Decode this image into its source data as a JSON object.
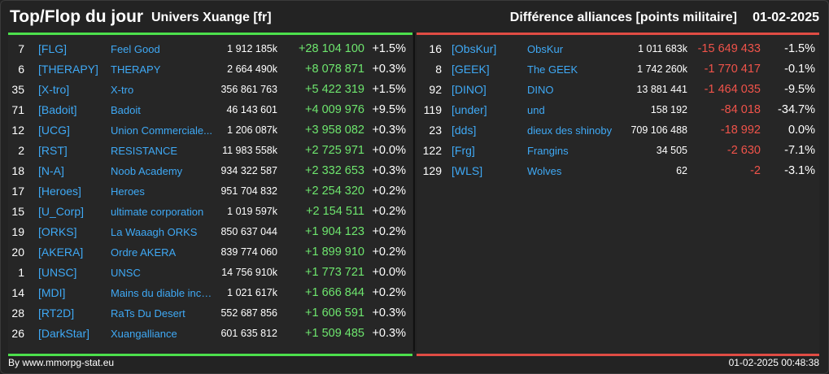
{
  "header": {
    "title": "Top/Flop du jour",
    "universe": "Univers Xuange [fr]",
    "diff_label": "Différence alliances [points militaire]",
    "date": "01-02-2025"
  },
  "top": [
    {
      "rank": "7",
      "tag": "[FLG]",
      "name": "Feel Good",
      "points": "1 912 185k",
      "diff": "+28 104 100",
      "pct": "+1.5%"
    },
    {
      "rank": "6",
      "tag": "[THERAPY]",
      "name": "THERAPY",
      "points": "2 664 490k",
      "diff": "+8 078 871",
      "pct": "+0.3%"
    },
    {
      "rank": "35",
      "tag": "[X-tro]",
      "name": "X-tro",
      "points": "356 861 763",
      "diff": "+5 422 319",
      "pct": "+1.5%"
    },
    {
      "rank": "71",
      "tag": "[Badoit]",
      "name": "Badoit",
      "points": "46 143 601",
      "diff": "+4 009 976",
      "pct": "+9.5%"
    },
    {
      "rank": "12",
      "tag": "[UCG]",
      "name": "Union Commerciale...",
      "points": "1 206 087k",
      "diff": "+3 958 082",
      "pct": "+0.3%"
    },
    {
      "rank": "2",
      "tag": "[RST]",
      "name": "RESISTANCE",
      "points": "11 983 558k",
      "diff": "+2 725 971",
      "pct": "+0.0%"
    },
    {
      "rank": "18",
      "tag": "[N-A]",
      "name": "Noob Academy",
      "points": "934 322 587",
      "diff": "+2 332 653",
      "pct": "+0.3%"
    },
    {
      "rank": "17",
      "tag": "[Heroes]",
      "name": "Heroes",
      "points": "951 704 832",
      "diff": "+2 254 320",
      "pct": "+0.2%"
    },
    {
      "rank": "15",
      "tag": "[U_Corp]",
      "name": "ultimate corporation",
      "points": "1 019 597k",
      "diff": "+2 154 511",
      "pct": "+0.2%"
    },
    {
      "rank": "19",
      "tag": "[ORKS]",
      "name": "La Waaagh ORKS",
      "points": "850 637 044",
      "diff": "+1 904 123",
      "pct": "+0.2%"
    },
    {
      "rank": "20",
      "tag": "[AKERA]",
      "name": "Ordre AKERA",
      "points": "839 774 060",
      "diff": "+1 899 910",
      "pct": "+0.2%"
    },
    {
      "rank": "1",
      "tag": "[UNSC]",
      "name": "UNSC",
      "points": "14 756 910k",
      "diff": "+1 773 721",
      "pct": "+0.0%"
    },
    {
      "rank": "14",
      "tag": "[MDI]",
      "name": "Mains du diable inco...",
      "points": "1 021 617k",
      "diff": "+1 666 844",
      "pct": "+0.2%"
    },
    {
      "rank": "28",
      "tag": "[RT2D]",
      "name": "RaTs Du Desert",
      "points": "552 687 856",
      "diff": "+1 606 591",
      "pct": "+0.3%"
    },
    {
      "rank": "26",
      "tag": "[DarkStar]",
      "name": "Xuangalliance",
      "points": "601 635 812",
      "diff": "+1 509 485",
      "pct": "+0.3%"
    }
  ],
  "flop": [
    {
      "rank": "16",
      "tag": "[ObsKur]",
      "name": "ObsKur",
      "points": "1 011 683k",
      "diff": "-15 649 433",
      "pct": "-1.5%"
    },
    {
      "rank": "8",
      "tag": "[GEEK]",
      "name": "The GEEK",
      "points": "1 742 260k",
      "diff": "-1 770 417",
      "pct": "-0.1%"
    },
    {
      "rank": "92",
      "tag": "[DINO]",
      "name": "DINO",
      "points": "13 881 441",
      "diff": "-1 464 035",
      "pct": "-9.5%"
    },
    {
      "rank": "119",
      "tag": "[under]",
      "name": "und",
      "points": "158 192",
      "diff": "-84 018",
      "pct": "-34.7%"
    },
    {
      "rank": "23",
      "tag": "[dds]",
      "name": "dieux des shinoby",
      "points": "709 106 488",
      "diff": "-18 992",
      "pct": "0.0%"
    },
    {
      "rank": "122",
      "tag": "[Frg]",
      "name": "Frangins",
      "points": "34 505",
      "diff": "-2 630",
      "pct": "-7.1%"
    },
    {
      "rank": "129",
      "tag": "[WLS]",
      "name": "Wolves",
      "points": "62",
      "diff": "-2",
      "pct": "-3.1%"
    }
  ],
  "footer": {
    "source": "By www.mmorpg-stat.eu",
    "timestamp": "01-02-2025 00:48:38"
  },
  "colors": {
    "positive": "#6ee66e",
    "negative": "#f0534a",
    "link": "#3fa9f5",
    "top_bar": "#4ce04c",
    "flop_bar": "#e04c44"
  }
}
